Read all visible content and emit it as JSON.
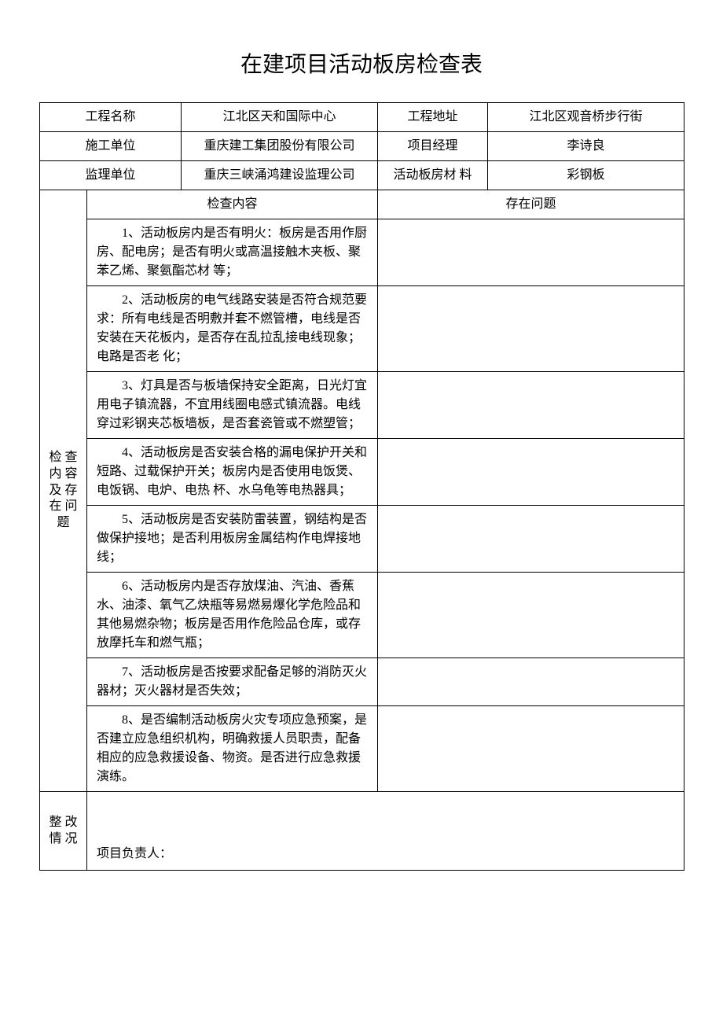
{
  "title": "在建项目活动板房检查表",
  "header": {
    "row1": {
      "label1": "工程名称",
      "value1": "江北区天和国际中心",
      "label2": "工程地址",
      "value2": "江北区观音桥步行街"
    },
    "row2": {
      "label1": "施工单位",
      "value1": "重庆建工集团股份有限公司",
      "label2": "项目经理",
      "value2": "李诗良"
    },
    "row3": {
      "label1": "监理单位",
      "value1": "重庆三峡涌鸿建设监理公司",
      "label2": "活动板房材 料",
      "value2": "彩钢板"
    }
  },
  "section": {
    "vertical_label": "检 查 内 容 及 存 在 问 题",
    "col_content": "检查内容",
    "col_issue": "存在问题"
  },
  "items": {
    "i1": "1、活动板房内是否有明火：板房是否用作厨房、配电房；是否有明火或高温接触木夹板、聚苯乙烯、聚氨酯芯材 等；",
    "i2": "2、活动板房的电气线路安装是否符合规范要求：所有电线是否明敷并套不燃管槽，电线是否安装在天花板内，是否存在乱拉乱接电线现象；电路是否老 化；",
    "i3": "3、灯具是否与板墙保持安全距离，日光灯宜用电子镇流器，不宜用线圈电感式镇流器。电线穿过彩钢夹芯板墙板，是否套瓷管或不燃塑管；",
    "i4": "4、活动板房是否安装合格的漏电保护开关和短路、过载保护开关；板房内是否使用电饭煲、电饭锅、电炉、电热 杯、水乌龟等电热器具；",
    "i5": "5、活动板房是否安装防雷装置，钢结构是否做保护接地；是否利用板房金属结构作电焊接地线；",
    "i6": "6、活动板房内是否存放煤油、汽油、香蕉水、油漆、氧气乙炔瓶等易燃易爆化学危险品和其他易燃杂物；板房是否用作危险品仓库，或存放摩托车和燃气瓶；",
    "i7": "7、活动板房是否按要求配备足够的消防灭火器材；灭火器材是否失效；",
    "i8": "8、是否编制活动板房火灾专项应急预案，是否建立应急组织机构，明确救援人员职责，配备相应的应急救援设备、物资。是否进行应急救援演练。"
  },
  "rectify": {
    "vertical_label": "整 改 情 况",
    "leader_label": "项目负责人："
  },
  "colors": {
    "text": "#000000",
    "border": "#000000",
    "background": "#ffffff"
  },
  "fonts": {
    "title_size": 28,
    "body_size": 16
  }
}
